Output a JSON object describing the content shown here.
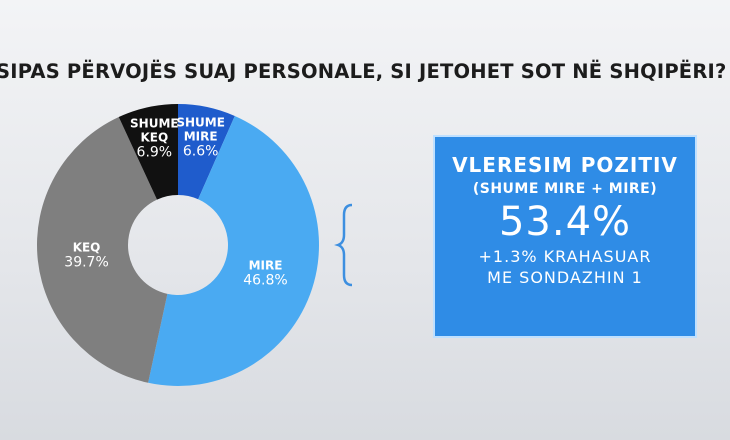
{
  "chart_data": {
    "type": "pie",
    "title": "SIPAS PËRVOJËS SUAJ PERSONALE, SI JETOHET SOT NË SHQIPËRI?",
    "categories": [
      "SHUME MIRE",
      "MIRE",
      "KEQ",
      "SHUME KEQ"
    ],
    "values": [
      6.6,
      46.8,
      39.7,
      6.9
    ],
    "value_labels": [
      "6.6%",
      "46.8%",
      "39.7%",
      "6.9%"
    ],
    "colors": [
      "#1f5ccc",
      "#4aaaf2",
      "#7f7f7f",
      "#111111"
    ],
    "annotations": [
      "VLERESIM POZITIV",
      "(SHUME MIRE + MIRE)",
      "53.4%",
      "+1.3% KRAHASUAR",
      "ME SONDAZHIN 1"
    ]
  }
}
